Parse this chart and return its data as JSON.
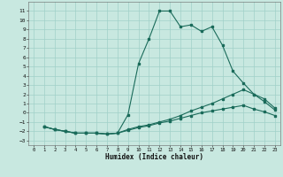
{
  "xlabel": "Humidex (Indice chaleur)",
  "bg_color": "#c8e8e0",
  "line_color": "#1a6b5a",
  "grid_color": "#a0d0c8",
  "xlim": [
    -0.5,
    23.5
  ],
  "ylim": [
    -3.5,
    12
  ],
  "xticks": [
    0,
    1,
    2,
    3,
    4,
    5,
    6,
    7,
    8,
    9,
    10,
    11,
    12,
    13,
    14,
    15,
    16,
    17,
    18,
    19,
    20,
    21,
    22,
    23
  ],
  "yticks": [
    -3,
    -2,
    -1,
    0,
    1,
    2,
    3,
    4,
    5,
    6,
    7,
    8,
    9,
    10,
    11
  ],
  "line1_x": [
    1,
    2,
    3,
    4,
    5,
    6,
    7,
    8,
    9,
    10,
    11,
    12,
    13,
    14,
    15,
    16,
    17,
    18,
    19,
    20,
    21,
    22,
    23
  ],
  "line1_y": [
    -1.5,
    -1.8,
    -2.0,
    -2.2,
    -2.2,
    -2.2,
    -2.3,
    -2.2,
    -0.2,
    5.3,
    8.0,
    11.0,
    11.0,
    9.3,
    9.5,
    8.8,
    9.3,
    7.3,
    4.5,
    3.2,
    2.0,
    1.2,
    0.3
  ],
  "line2_x": [
    1,
    2,
    3,
    4,
    5,
    6,
    7,
    8,
    9,
    10,
    11,
    12,
    13,
    14,
    15,
    16,
    17,
    18,
    19,
    20,
    21,
    22,
    23
  ],
  "line2_y": [
    -1.5,
    -1.8,
    -2.0,
    -2.2,
    -2.2,
    -2.2,
    -2.3,
    -2.2,
    -1.8,
    -1.5,
    -1.3,
    -1.0,
    -0.7,
    -0.3,
    0.2,
    0.6,
    1.0,
    1.5,
    2.0,
    2.5,
    2.0,
    1.5,
    0.5
  ],
  "line3_x": [
    1,
    2,
    3,
    4,
    5,
    6,
    7,
    8,
    9,
    10,
    11,
    12,
    13,
    14,
    15,
    16,
    17,
    18,
    19,
    20,
    21,
    22,
    23
  ],
  "line3_y": [
    -1.5,
    -1.8,
    -2.0,
    -2.2,
    -2.2,
    -2.2,
    -2.3,
    -2.2,
    -1.9,
    -1.6,
    -1.4,
    -1.1,
    -0.9,
    -0.6,
    -0.3,
    0.0,
    0.2,
    0.4,
    0.6,
    0.8,
    0.4,
    0.1,
    -0.3
  ]
}
